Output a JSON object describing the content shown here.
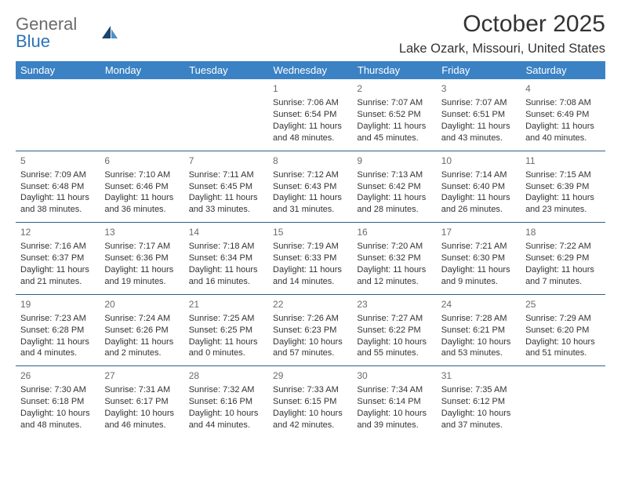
{
  "logo": {
    "text_gray": "General",
    "text_blue": "Blue",
    "sail_dark": "#19466e",
    "sail_light": "#4f8fc8"
  },
  "title": "October 2025",
  "location": "Lake Ozark, Missouri, United States",
  "header_bg": "#3b82c4",
  "header_text_color": "#ffffff",
  "row_border_color": "#2e5f8a",
  "day_number_color": "#6b6b6b",
  "body_text_color": "#333333",
  "font_size_header": 13,
  "font_size_body": 11,
  "days_of_week": [
    "Sunday",
    "Monday",
    "Tuesday",
    "Wednesday",
    "Thursday",
    "Friday",
    "Saturday"
  ],
  "weeks": [
    [
      null,
      null,
      null,
      {
        "n": "1",
        "sunrise": "7:06 AM",
        "sunset": "6:54 PM",
        "dl_h": "11",
        "dl_m": "48"
      },
      {
        "n": "2",
        "sunrise": "7:07 AM",
        "sunset": "6:52 PM",
        "dl_h": "11",
        "dl_m": "45"
      },
      {
        "n": "3",
        "sunrise": "7:07 AM",
        "sunset": "6:51 PM",
        "dl_h": "11",
        "dl_m": "43"
      },
      {
        "n": "4",
        "sunrise": "7:08 AM",
        "sunset": "6:49 PM",
        "dl_h": "11",
        "dl_m": "40"
      }
    ],
    [
      {
        "n": "5",
        "sunrise": "7:09 AM",
        "sunset": "6:48 PM",
        "dl_h": "11",
        "dl_m": "38"
      },
      {
        "n": "6",
        "sunrise": "7:10 AM",
        "sunset": "6:46 PM",
        "dl_h": "11",
        "dl_m": "36"
      },
      {
        "n": "7",
        "sunrise": "7:11 AM",
        "sunset": "6:45 PM",
        "dl_h": "11",
        "dl_m": "33"
      },
      {
        "n": "8",
        "sunrise": "7:12 AM",
        "sunset": "6:43 PM",
        "dl_h": "11",
        "dl_m": "31"
      },
      {
        "n": "9",
        "sunrise": "7:13 AM",
        "sunset": "6:42 PM",
        "dl_h": "11",
        "dl_m": "28"
      },
      {
        "n": "10",
        "sunrise": "7:14 AM",
        "sunset": "6:40 PM",
        "dl_h": "11",
        "dl_m": "26"
      },
      {
        "n": "11",
        "sunrise": "7:15 AM",
        "sunset": "6:39 PM",
        "dl_h": "11",
        "dl_m": "23"
      }
    ],
    [
      {
        "n": "12",
        "sunrise": "7:16 AM",
        "sunset": "6:37 PM",
        "dl_h": "11",
        "dl_m": "21"
      },
      {
        "n": "13",
        "sunrise": "7:17 AM",
        "sunset": "6:36 PM",
        "dl_h": "11",
        "dl_m": "19"
      },
      {
        "n": "14",
        "sunrise": "7:18 AM",
        "sunset": "6:34 PM",
        "dl_h": "11",
        "dl_m": "16"
      },
      {
        "n": "15",
        "sunrise": "7:19 AM",
        "sunset": "6:33 PM",
        "dl_h": "11",
        "dl_m": "14"
      },
      {
        "n": "16",
        "sunrise": "7:20 AM",
        "sunset": "6:32 PM",
        "dl_h": "11",
        "dl_m": "12"
      },
      {
        "n": "17",
        "sunrise": "7:21 AM",
        "sunset": "6:30 PM",
        "dl_h": "11",
        "dl_m": "9"
      },
      {
        "n": "18",
        "sunrise": "7:22 AM",
        "sunset": "6:29 PM",
        "dl_h": "11",
        "dl_m": "7"
      }
    ],
    [
      {
        "n": "19",
        "sunrise": "7:23 AM",
        "sunset": "6:28 PM",
        "dl_h": "11",
        "dl_m": "4"
      },
      {
        "n": "20",
        "sunrise": "7:24 AM",
        "sunset": "6:26 PM",
        "dl_h": "11",
        "dl_m": "2"
      },
      {
        "n": "21",
        "sunrise": "7:25 AM",
        "sunset": "6:25 PM",
        "dl_h": "11",
        "dl_m": "0"
      },
      {
        "n": "22",
        "sunrise": "7:26 AM",
        "sunset": "6:23 PM",
        "dl_h": "10",
        "dl_m": "57"
      },
      {
        "n": "23",
        "sunrise": "7:27 AM",
        "sunset": "6:22 PM",
        "dl_h": "10",
        "dl_m": "55"
      },
      {
        "n": "24",
        "sunrise": "7:28 AM",
        "sunset": "6:21 PM",
        "dl_h": "10",
        "dl_m": "53"
      },
      {
        "n": "25",
        "sunrise": "7:29 AM",
        "sunset": "6:20 PM",
        "dl_h": "10",
        "dl_m": "51"
      }
    ],
    [
      {
        "n": "26",
        "sunrise": "7:30 AM",
        "sunset": "6:18 PM",
        "dl_h": "10",
        "dl_m": "48"
      },
      {
        "n": "27",
        "sunrise": "7:31 AM",
        "sunset": "6:17 PM",
        "dl_h": "10",
        "dl_m": "46"
      },
      {
        "n": "28",
        "sunrise": "7:32 AM",
        "sunset": "6:16 PM",
        "dl_h": "10",
        "dl_m": "44"
      },
      {
        "n": "29",
        "sunrise": "7:33 AM",
        "sunset": "6:15 PM",
        "dl_h": "10",
        "dl_m": "42"
      },
      {
        "n": "30",
        "sunrise": "7:34 AM",
        "sunset": "6:14 PM",
        "dl_h": "10",
        "dl_m": "39"
      },
      {
        "n": "31",
        "sunrise": "7:35 AM",
        "sunset": "6:12 PM",
        "dl_h": "10",
        "dl_m": "37"
      },
      null
    ]
  ]
}
